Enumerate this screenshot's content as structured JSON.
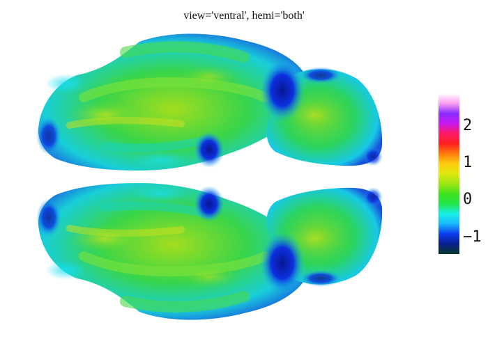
{
  "title": "view='ventral', hemi='both'",
  "colorbar": {
    "ticks": [
      "2",
      "1",
      "0",
      "−1"
    ],
    "tick_values": [
      2,
      1,
      0,
      -1
    ],
    "range": [
      -1.5,
      2.9
    ],
    "colormap": [
      "#033a2a",
      "#0a1d8a",
      "#0c3cf0",
      "#19b7ff",
      "#19f0e8",
      "#22e64a",
      "#3fe21e",
      "#9fe614",
      "#dfe80e",
      "#ffcc10",
      "#ff7a10",
      "#ff1f1f",
      "#ff1a66",
      "#c61af0",
      "#8a2cff",
      "#ffa0f0",
      "#ffffff"
    ]
  },
  "colors": {
    "surface_green": "#3ad64a",
    "surface_yellow": "#c8e020",
    "surface_cyan": "#16d7e8",
    "surface_blue": "#1030d6"
  }
}
